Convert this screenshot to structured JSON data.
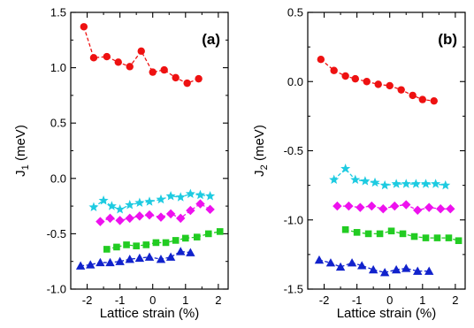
{
  "chart_data": [
    {
      "type": "line",
      "panel_label": "(a)",
      "xlabel": "Lattice strain (%)",
      "ylabel": {
        "main": "J",
        "sub": "1",
        "unit": " (meV)"
      },
      "xlim": [
        -2.5,
        2.3
      ],
      "ylim": [
        -1.0,
        1.5
      ],
      "xticks": [
        -2,
        -1,
        0,
        1,
        2
      ],
      "xtick_labels": [
        "-2",
        "-1",
        "0",
        "1",
        "2"
      ],
      "yticks": [
        -1.0,
        -0.5,
        0.0,
        0.5,
        1.0,
        1.5
      ],
      "ytick_labels": [
        "-1.0",
        "-0.5",
        "0.0",
        "0.5",
        "1.0",
        "1.5"
      ],
      "grid": false,
      "series": [
        {
          "color": "#ee1111",
          "marker": "circle",
          "x": [
            -2.1,
            -1.8,
            -1.4,
            -1.05,
            -0.7,
            -0.35,
            0.0,
            0.35,
            0.7,
            1.05,
            1.4
          ],
          "y": [
            1.37,
            1.09,
            1.1,
            1.05,
            1.01,
            1.15,
            0.96,
            0.98,
            0.91,
            0.86,
            0.9
          ]
        },
        {
          "color": "#1ecbe1",
          "marker": "star",
          "x": [
            -1.8,
            -1.5,
            -1.25,
            -1.0,
            -0.7,
            -0.4,
            -0.1,
            0.25,
            0.55,
            0.85,
            1.15,
            1.45,
            1.75
          ],
          "y": [
            -0.26,
            -0.2,
            -0.25,
            -0.28,
            -0.24,
            -0.22,
            -0.21,
            -0.19,
            -0.16,
            -0.17,
            -0.14,
            -0.15,
            -0.16
          ]
        },
        {
          "color": "#ee11ee",
          "marker": "diamond",
          "x": [
            -1.6,
            -1.3,
            -1.0,
            -0.7,
            -0.4,
            -0.1,
            0.25,
            0.55,
            0.85,
            1.15,
            1.45,
            1.75
          ],
          "y": [
            -0.39,
            -0.36,
            -0.38,
            -0.36,
            -0.34,
            -0.33,
            -0.35,
            -0.32,
            -0.36,
            -0.29,
            -0.23,
            -0.28
          ]
        },
        {
          "color": "#22cc22",
          "marker": "square",
          "x": [
            -1.4,
            -1.1,
            -0.8,
            -0.5,
            -0.2,
            0.1,
            0.4,
            0.7,
            1.0,
            1.35,
            1.7,
            2.05
          ],
          "y": [
            -0.64,
            -0.62,
            -0.6,
            -0.61,
            -0.6,
            -0.58,
            -0.58,
            -0.56,
            -0.54,
            -0.53,
            -0.5,
            -0.48
          ]
        },
        {
          "color": "#1122cc",
          "marker": "triangle",
          "x": [
            -2.2,
            -1.9,
            -1.6,
            -1.3,
            -1.0,
            -0.7,
            -0.4,
            -0.1,
            0.25,
            0.55,
            0.85,
            1.15
          ],
          "y": [
            -0.79,
            -0.78,
            -0.76,
            -0.76,
            -0.75,
            -0.73,
            -0.72,
            -0.71,
            -0.73,
            -0.71,
            -0.66,
            -0.67
          ]
        }
      ]
    },
    {
      "type": "line",
      "panel_label": "(b)",
      "xlabel": "Lattice strain (%)",
      "ylabel": {
        "main": "J",
        "sub": "2",
        "unit": " (meV)"
      },
      "xlim": [
        -2.5,
        2.3
      ],
      "ylim": [
        -1.5,
        0.5
      ],
      "xticks": [
        -2,
        -1,
        0,
        1,
        2
      ],
      "xtick_labels": [
        "-2",
        "-1",
        "0",
        "1",
        "2"
      ],
      "yticks": [
        -1.5,
        -1.0,
        -0.5,
        0.0,
        0.5
      ],
      "ytick_labels": [
        "-1.5",
        "-1.0",
        "-0.5",
        "0.0",
        "0.5"
      ],
      "grid": false,
      "series": [
        {
          "color": "#ee1111",
          "marker": "circle",
          "x": [
            -2.1,
            -1.7,
            -1.35,
            -1.05,
            -0.7,
            -0.35,
            0.0,
            0.35,
            0.7,
            1.0,
            1.35
          ],
          "y": [
            0.16,
            0.08,
            0.04,
            0.02,
            0.0,
            -0.02,
            -0.03,
            -0.06,
            -0.1,
            -0.13,
            -0.14
          ]
        },
        {
          "color": "#1ecbe1",
          "marker": "star",
          "x": [
            -1.7,
            -1.35,
            -1.05,
            -0.75,
            -0.45,
            -0.15,
            0.2,
            0.5,
            0.8,
            1.1,
            1.4,
            1.7
          ],
          "y": [
            -0.71,
            -0.63,
            -0.71,
            -0.72,
            -0.73,
            -0.75,
            -0.74,
            -0.74,
            -0.74,
            -0.74,
            -0.74,
            -0.75
          ]
        },
        {
          "color": "#ee11ee",
          "marker": "diamond",
          "x": [
            -1.6,
            -1.25,
            -0.9,
            -0.55,
            -0.2,
            0.15,
            0.5,
            0.85,
            1.2,
            1.55,
            1.85
          ],
          "y": [
            -0.9,
            -0.9,
            -0.91,
            -0.9,
            -0.92,
            -0.9,
            -0.89,
            -0.93,
            -0.91,
            -0.92,
            -0.92
          ]
        },
        {
          "color": "#22cc22",
          "marker": "square",
          "x": [
            -1.35,
            -1.0,
            -0.65,
            -0.3,
            0.05,
            0.4,
            0.75,
            1.1,
            1.45,
            1.8,
            2.1
          ],
          "y": [
            -1.07,
            -1.09,
            -1.1,
            -1.1,
            -1.08,
            -1.1,
            -1.12,
            -1.13,
            -1.13,
            -1.13,
            -1.15
          ]
        },
        {
          "color": "#1122cc",
          "marker": "triangle",
          "x": [
            -2.15,
            -1.8,
            -1.5,
            -1.15,
            -0.85,
            -0.5,
            -0.15,
            0.2,
            0.5,
            0.85,
            1.2
          ],
          "y": [
            -1.29,
            -1.31,
            -1.34,
            -1.31,
            -1.33,
            -1.36,
            -1.38,
            -1.36,
            -1.35,
            -1.37,
            -1.37
          ]
        }
      ]
    }
  ]
}
